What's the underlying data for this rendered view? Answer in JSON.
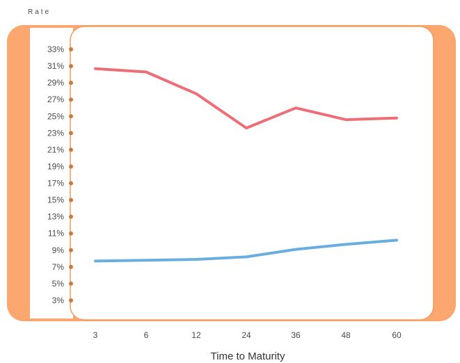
{
  "chart_data": {
    "type": "line",
    "ylabel": "Rate",
    "xlabel": "Time to Maturity",
    "categories": [
      "3",
      "6",
      "12",
      "24",
      "36",
      "48",
      "60"
    ],
    "x": [
      3,
      6,
      12,
      24,
      36,
      48,
      60
    ],
    "y_ticks": [
      "3%",
      "5%",
      "7%",
      "9%",
      "11%",
      "13%",
      "15%",
      "17%",
      "19%",
      "21%",
      "23%",
      "25%",
      "27%",
      "29%",
      "31%",
      "33%"
    ],
    "ylim": [
      3,
      33
    ],
    "grid": false,
    "legend": "none",
    "series": [
      {
        "color": "#ec6f78",
        "x": [
          3,
          6,
          12,
          24,
          36,
          48,
          60
        ],
        "values": [
          30.7,
          30.3,
          27.7,
          23.6,
          26.0,
          24.6,
          24.8
        ]
      },
      {
        "color": "#6aaee0",
        "x": [
          3,
          6,
          12,
          24,
          36,
          48,
          60
        ],
        "values": [
          7.7,
          7.8,
          7.9,
          8.2,
          9.1,
          9.7,
          10.2
        ]
      }
    ]
  },
  "colors": {
    "frame": "#fba76f",
    "frame_edge": "#f29a5c",
    "dot": "#c97a3e"
  }
}
